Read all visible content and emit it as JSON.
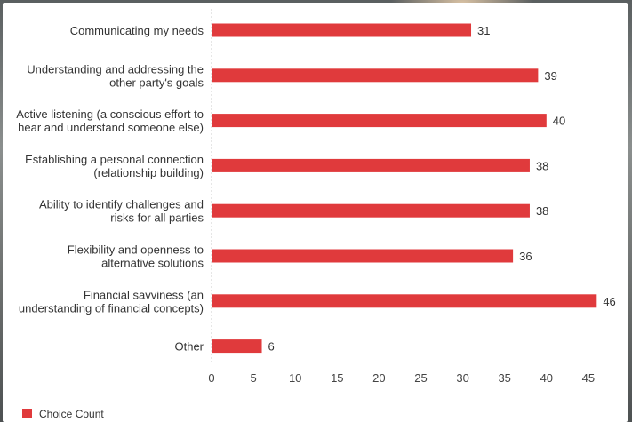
{
  "chart_data": {
    "type": "bar",
    "orientation": "horizontal",
    "categories": [
      [
        "Communicating my needs"
      ],
      [
        "Understanding and addressing the",
        "other party's goals"
      ],
      [
        "Active listening (a conscious effort to",
        "hear and understand someone else)"
      ],
      [
        "Establishing a personal connection",
        "(relationship building)"
      ],
      [
        "Ability to identify challenges and",
        "risks for all parties"
      ],
      [
        "Flexibility and openness to",
        "alternative solutions"
      ],
      [
        "Financial savviness (an",
        "understanding of financial concepts)"
      ],
      [
        "Other"
      ]
    ],
    "series": [
      {
        "name": "Choice Count",
        "color": "#e03a3c",
        "values": [
          31,
          39,
          40,
          38,
          38,
          36,
          46,
          6
        ]
      }
    ],
    "xlim": [
      0,
      45
    ],
    "xticks": [
      "0",
      "5",
      "10",
      "15",
      "20",
      "25",
      "30",
      "35",
      "40",
      "45"
    ],
    "grid": false,
    "legend_position": "bottom-left",
    "data_labels": true
  }
}
